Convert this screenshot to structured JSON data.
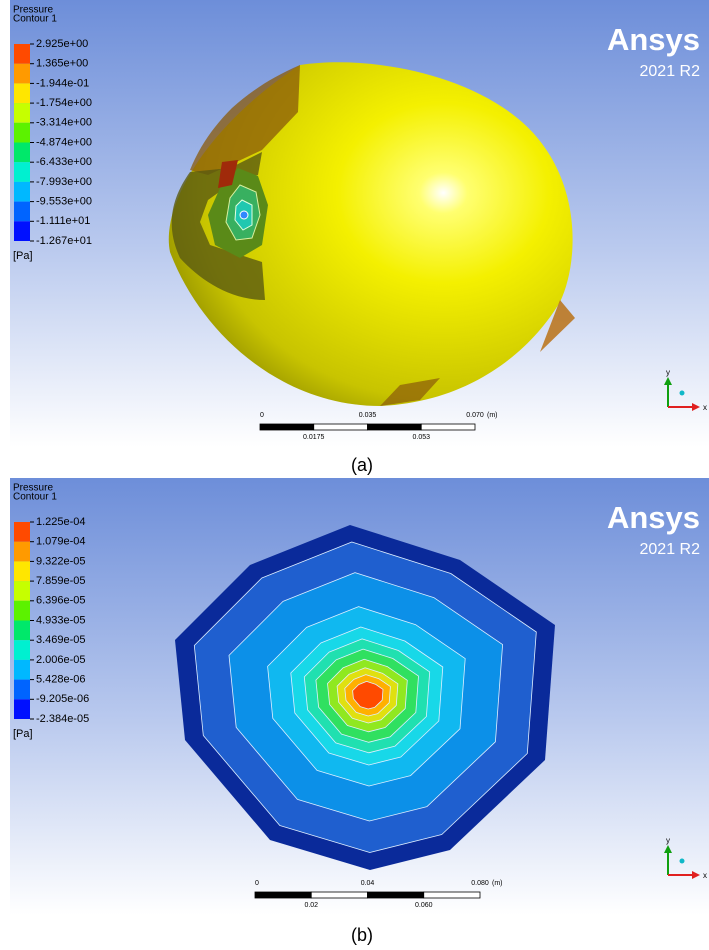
{
  "panels": [
    {
      "legend": {
        "title": "Pressure",
        "subtitle": "Contour 1",
        "labels": [
          "2.925e+00",
          "1.365e+00",
          "-1.944e-01",
          "-1.754e+00",
          "-3.314e+00",
          "-4.874e+00",
          "-6.433e+00",
          "-7.993e+00",
          "-9.553e+00",
          "-1.111e+01",
          "-1.267e+01"
        ],
        "unit": "[Pa]"
      },
      "brand": {
        "name": "Ansys",
        "version": "2021 R2"
      },
      "scale_bar": {
        "top_labels": [
          "0",
          "0.035",
          "0.070"
        ],
        "unit": "(m)",
        "bottom_labels": [
          "0.0175",
          "0.053"
        ]
      },
      "triad": {
        "y": "y",
        "x": "x"
      },
      "caption": "(a)"
    },
    {
      "legend": {
        "title": "Pressure",
        "subtitle": "Contour 1",
        "labels": [
          "1.225e-04",
          "1.079e-04",
          "9.322e-05",
          "7.859e-05",
          "6.396e-05",
          "4.933e-05",
          "3.469e-05",
          "2.006e-05",
          "5.428e-06",
          "-9.205e-06",
          "-2.384e-05"
        ],
        "unit": "[Pa]"
      },
      "brand": {
        "name": "Ansys",
        "version": "2021 R2"
      },
      "scale_bar": {
        "top_labels": [
          "0",
          "0.04",
          "0.080"
        ],
        "unit": "(m)",
        "bottom_labels": [
          "0.02",
          "0.060"
        ]
      },
      "triad": {
        "y": "y",
        "x": "x"
      },
      "caption": "(b)"
    }
  ]
}
